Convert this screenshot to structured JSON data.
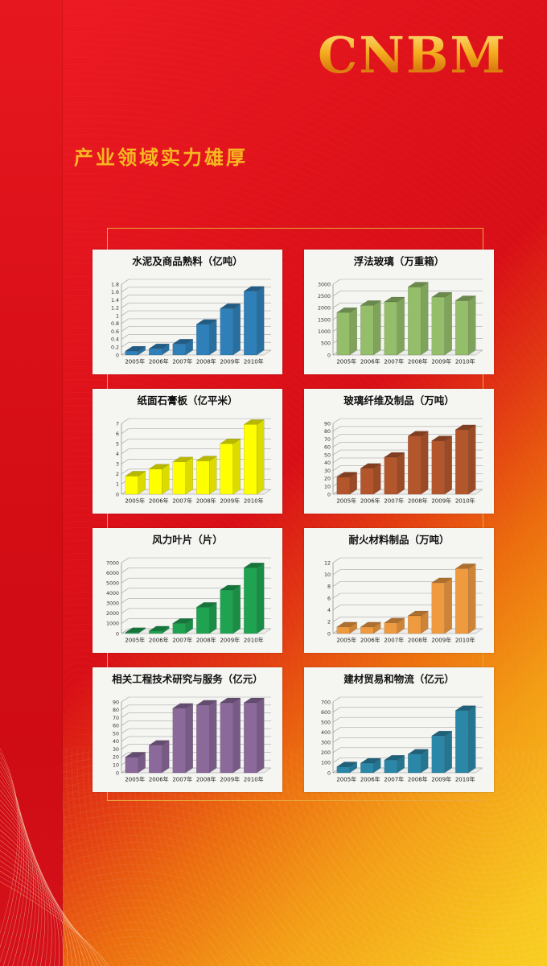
{
  "logo": {
    "text": "CNBM"
  },
  "header": {
    "title": "产业领域实力雄厚"
  },
  "colors": {
    "page_red": "#d90f17",
    "page_gold": "#f8c51e",
    "frame_gold": "#e9a93d",
    "title_gold": "#f7b822",
    "logo_gold": "#f4ab1e",
    "card_bg": "#f5f5f2"
  },
  "chart_data": [
    {
      "type": "bar",
      "title": "水泥及商品熟料（亿吨）",
      "categories": [
        "2005年",
        "2006年",
        "2007年",
        "2008年",
        "2009年",
        "2010年"
      ],
      "values": [
        0.1,
        0.16,
        0.28,
        0.78,
        1.18,
        1.62
      ],
      "ylim": [
        0,
        1.8
      ],
      "yticks": [
        "0",
        "0.2",
        "0.4",
        "0.6",
        "0.8",
        "1",
        "1.2",
        "1.4",
        "1.6",
        "1.8"
      ],
      "bar_color": "#2f80b8",
      "grid": true,
      "legend": "none"
    },
    {
      "type": "bar",
      "title": "浮法玻璃（万重箱）",
      "categories": [
        "2005年",
        "2006年",
        "2007年",
        "2008年",
        "2009年",
        "2010年"
      ],
      "values": [
        1800,
        2100,
        2250,
        2880,
        2450,
        2300
      ],
      "ylim": [
        0,
        3000
      ],
      "yticks": [
        "0",
        "500",
        "1000",
        "1500",
        "2000",
        "2500",
        "3000"
      ],
      "bar_color": "#94be6a",
      "grid": true,
      "legend": "none"
    },
    {
      "type": "bar",
      "title": "纸面石膏板（亿平米）",
      "categories": [
        "2005年",
        "2006年",
        "2007年",
        "2008年",
        "2009年",
        "2010年"
      ],
      "values": [
        1.8,
        2.5,
        3.2,
        3.3,
        5.0,
        6.9
      ],
      "ylim": [
        0,
        7
      ],
      "yticks": [
        "0",
        "1",
        "2",
        "3",
        "4",
        "5",
        "6",
        "7"
      ],
      "bar_color": "#ffff00",
      "grid": true,
      "legend": "none"
    },
    {
      "type": "bar",
      "title": "玻璃纤维及制品（万吨）",
      "categories": [
        "2005年",
        "2006年",
        "2007年",
        "2008年",
        "2009年",
        "2010年"
      ],
      "values": [
        22,
        33,
        47,
        74,
        68,
        82
      ],
      "ylim": [
        0,
        90
      ],
      "yticks": [
        "0",
        "10",
        "20",
        "30",
        "40",
        "50",
        "60",
        "70",
        "80",
        "90"
      ],
      "bar_color": "#b4562c",
      "grid": true,
      "legend": "none"
    },
    {
      "type": "bar",
      "title": "风力叶片（片）",
      "categories": [
        "2005年",
        "2006年",
        "2007年",
        "2008年",
        "2009年",
        "2010年"
      ],
      "values": [
        100,
        250,
        1000,
        2600,
        4300,
        6500
      ],
      "ylim": [
        0,
        7000
      ],
      "yticks": [
        "0",
        "1000",
        "2000",
        "3000",
        "4000",
        "5000",
        "6000",
        "7000"
      ],
      "bar_color": "#1fa351",
      "grid": true,
      "legend": "none"
    },
    {
      "type": "bar",
      "title": "耐火材料制品（万吨）",
      "categories": [
        "2005年",
        "2006年",
        "2007年",
        "2008年",
        "2009年",
        "2010年"
      ],
      "values": [
        1.1,
        1.1,
        1.8,
        3.0,
        8.6,
        11.0
      ],
      "ylim": [
        0,
        12
      ],
      "yticks": [
        "0",
        "2",
        "4",
        "6",
        "8",
        "10",
        "12"
      ],
      "bar_color": "#f09a40",
      "grid": true,
      "legend": "none"
    },
    {
      "type": "bar",
      "title": "相关工程技术研究与服务（亿元）",
      "categories": [
        "2005年",
        "2006年",
        "2007年",
        "2008年",
        "2009年",
        "2010年"
      ],
      "values": [
        20,
        35,
        82,
        86,
        89,
        89
      ],
      "ylim": [
        0,
        90
      ],
      "yticks": [
        "0",
        "10",
        "20",
        "30",
        "40",
        "50",
        "60",
        "70",
        "80",
        "90"
      ],
      "bar_color": "#8b6a9b",
      "grid": true,
      "legend": "none"
    },
    {
      "type": "bar",
      "title": "建材贸易和物流（亿元）",
      "categories": [
        "2005年",
        "2006年",
        "2007年",
        "2008年",
        "2009年",
        "2010年"
      ],
      "values": [
        60,
        95,
        125,
        185,
        365,
        615
      ],
      "ylim": [
        0,
        700
      ],
      "yticks": [
        "0",
        "100",
        "200",
        "300",
        "400",
        "500",
        "600",
        "700"
      ],
      "bar_color": "#2b87a8",
      "grid": true,
      "legend": "none"
    }
  ]
}
